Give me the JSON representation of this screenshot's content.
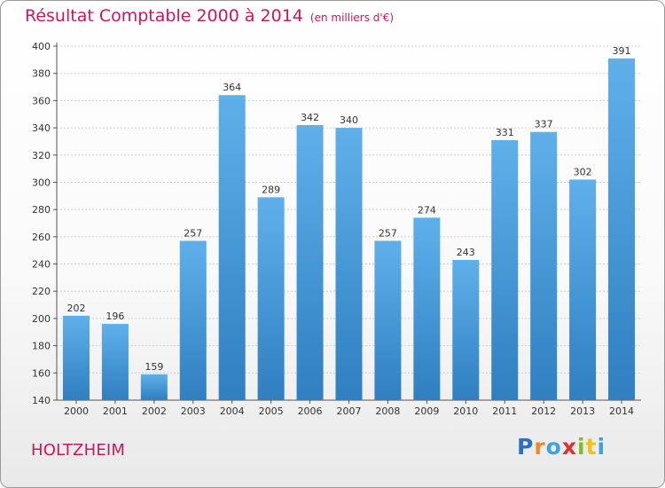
{
  "title": "Résultat Comptable 2000 à 2014",
  "subtitle": "(en milliers d'€)",
  "place": "HOLTZHEIM",
  "logo": {
    "letters": [
      "P",
      "r",
      "o",
      "x",
      "i",
      "t",
      "i"
    ],
    "colors": [
      "#2a6fc9",
      "#f08a1c",
      "#3aa3e0",
      "#e02f2f",
      "#7cbf2a",
      "#f2c21b",
      "#3aa3e0"
    ]
  },
  "colors": {
    "bar_light": "#5fb0ea",
    "bar_dark": "#2f7fc1",
    "text_accent": "#c8185a",
    "grid": "#cfcfcf"
  },
  "chart_data": {
    "type": "bar",
    "categories": [
      "2000",
      "2001",
      "2002",
      "2003",
      "2004",
      "2005",
      "2006",
      "2007",
      "2008",
      "2009",
      "2010",
      "2011",
      "2012",
      "2013",
      "2014"
    ],
    "values": [
      202,
      196,
      159,
      257,
      364,
      289,
      342,
      340,
      257,
      274,
      243,
      331,
      337,
      302,
      391
    ],
    "ylim": [
      140,
      400
    ],
    "yticks": [
      140,
      160,
      180,
      200,
      220,
      240,
      260,
      280,
      300,
      320,
      340,
      360,
      380,
      400
    ],
    "grid": true,
    "data_labels": true
  }
}
